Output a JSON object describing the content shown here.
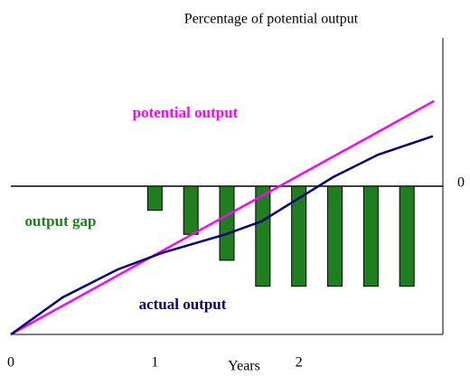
{
  "chart_data": {
    "type": "combo",
    "y_label": "Percentage of potential output",
    "x_label": "Years",
    "xlim": [
      0,
      3
    ],
    "xticks": [
      0,
      1,
      2
    ],
    "ylim": [
      -8,
      8
    ],
    "yticks": [
      0
    ],
    "series": [
      {
        "name": "output gap",
        "type": "bar",
        "color": "#1f7f1f",
        "x": [
          1,
          1.25,
          1.5,
          1.75,
          2,
          2.25,
          2.5,
          2.75
        ],
        "values": [
          -1.3,
          -2.6,
          -4.0,
          -5.4,
          -5.4,
          -5.4,
          -5.4,
          -5.4
        ]
      },
      {
        "name": "potential output",
        "type": "line",
        "color": "#ff00ff",
        "x": [
          0,
          2.94
        ],
        "values": [
          -8,
          4.6
        ]
      },
      {
        "name": "actual output",
        "type": "line",
        "color": "#000080",
        "x": [
          0,
          0.36,
          0.74,
          1.05,
          1.49,
          1.74,
          1.99,
          2.24,
          2.55,
          2.93
        ],
        "values": [
          -8,
          -6.0,
          -4.5,
          -3.6,
          -2.6,
          -1.9,
          -0.7,
          0.5,
          1.7,
          2.7
        ]
      }
    ]
  }
}
